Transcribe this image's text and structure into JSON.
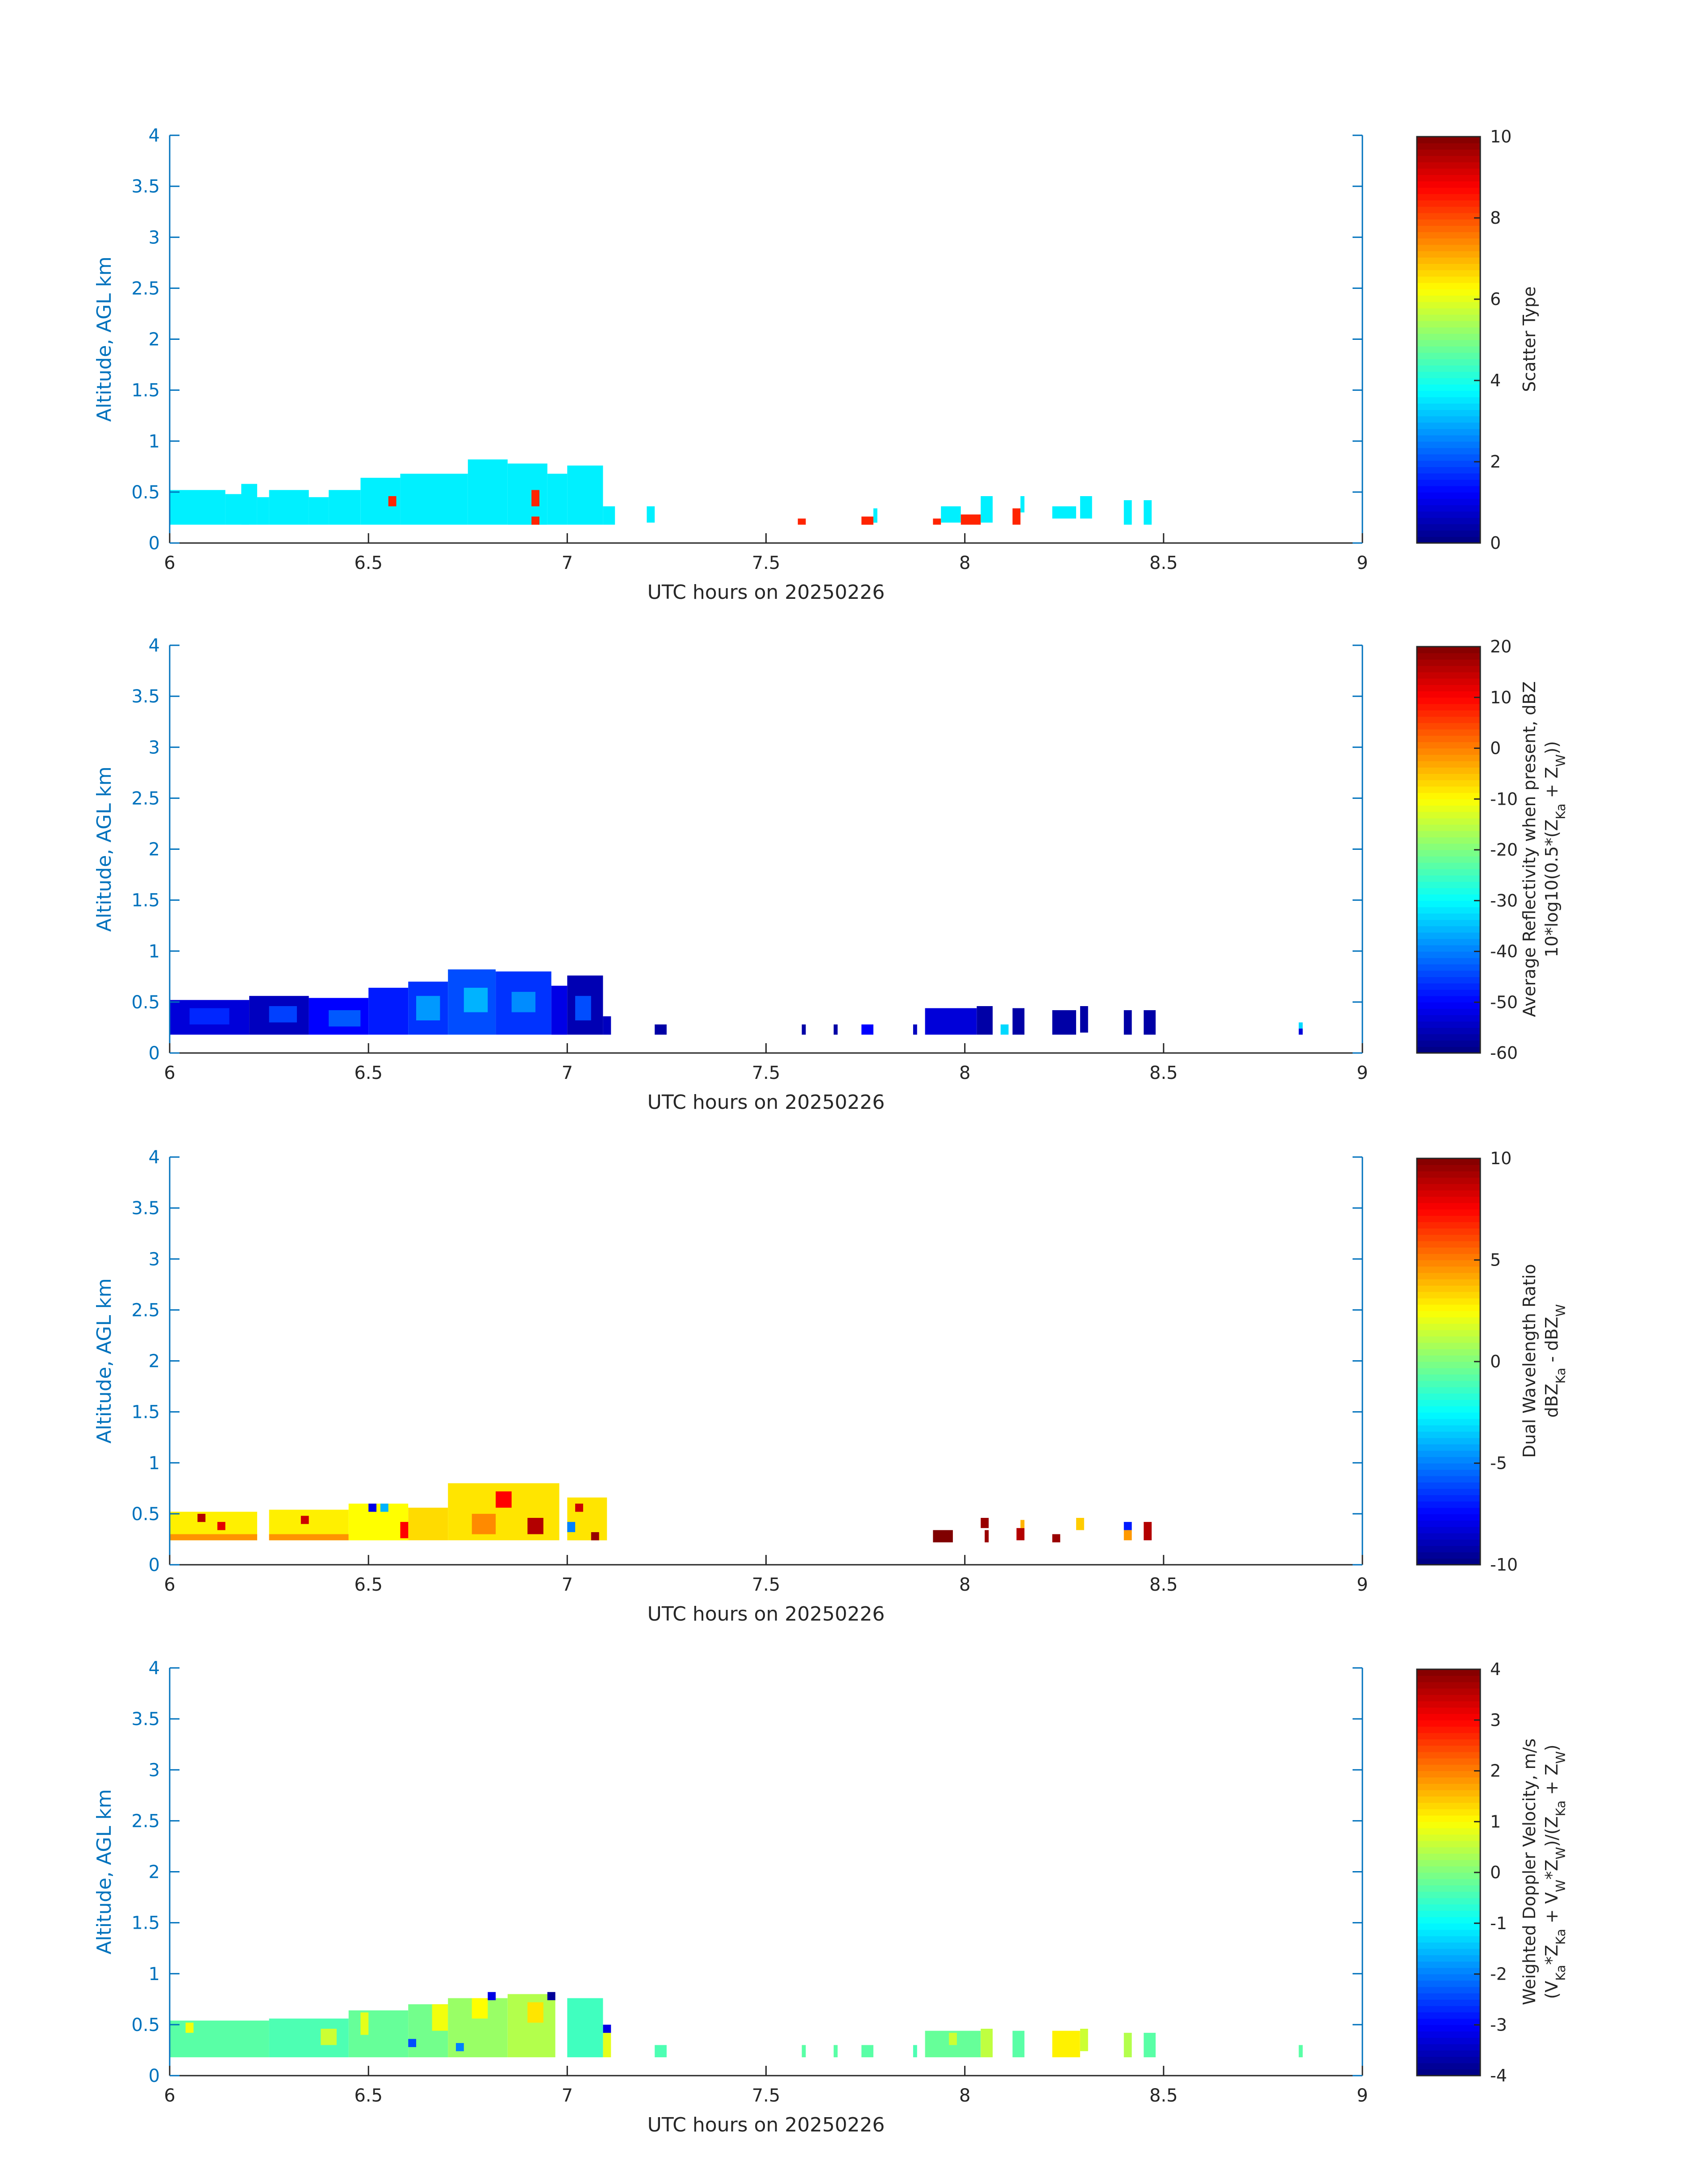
{
  "figure": {
    "date": "20250226"
  },
  "chart_data": [
    {
      "type": "heatmap",
      "id": "scatter-type",
      "xlabel": "UTC hours on 20250226",
      "ylabel": "Altitude, AGL km",
      "xlim": [
        6,
        9
      ],
      "ylim": [
        0,
        4
      ],
      "x_ticks": [
        "6",
        "6.5",
        "7",
        "7.5",
        "8",
        "8.5",
        "9"
      ],
      "y_ticks": [
        "0",
        "0.5",
        "1",
        "1.5",
        "2",
        "2.5",
        "3",
        "3.5",
        "4"
      ],
      "colorbar": {
        "label_lines": [
          "Scatter Type"
        ],
        "clim": [
          0,
          10
        ],
        "ticks": [
          "0",
          "2",
          "4",
          "6",
          "8",
          "10"
        ],
        "colormap": "jet"
      },
      "cells": [
        {
          "x0": 6.0,
          "x1": 6.14,
          "y0": 0.18,
          "y1": 0.52,
          "v": 3.6
        },
        {
          "x0": 6.14,
          "x1": 6.2,
          "y0": 0.18,
          "y1": 0.48,
          "v": 3.6
        },
        {
          "x0": 6.18,
          "x1": 6.22,
          "y0": 0.18,
          "y1": 0.58,
          "v": 3.6
        },
        {
          "x0": 6.22,
          "x1": 6.25,
          "y0": 0.18,
          "y1": 0.45,
          "v": 3.6
        },
        {
          "x0": 6.25,
          "x1": 6.35,
          "y0": 0.18,
          "y1": 0.52,
          "v": 3.6
        },
        {
          "x0": 6.35,
          "x1": 6.4,
          "y0": 0.18,
          "y1": 0.45,
          "v": 3.6
        },
        {
          "x0": 6.4,
          "x1": 6.48,
          "y0": 0.18,
          "y1": 0.52,
          "v": 3.6
        },
        {
          "x0": 6.48,
          "x1": 6.58,
          "y0": 0.18,
          "y1": 0.64,
          "v": 3.6
        },
        {
          "x0": 6.58,
          "x1": 6.75,
          "y0": 0.18,
          "y1": 0.68,
          "v": 3.6
        },
        {
          "x0": 6.75,
          "x1": 6.85,
          "y0": 0.18,
          "y1": 0.82,
          "v": 3.6
        },
        {
          "x0": 6.85,
          "x1": 6.95,
          "y0": 0.18,
          "y1": 0.78,
          "v": 3.6
        },
        {
          "x0": 6.95,
          "x1": 7.0,
          "y0": 0.18,
          "y1": 0.68,
          "v": 3.6
        },
        {
          "x0": 7.0,
          "x1": 7.09,
          "y0": 0.18,
          "y1": 0.76,
          "v": 3.6
        },
        {
          "x0": 7.09,
          "x1": 7.12,
          "y0": 0.18,
          "y1": 0.36,
          "v": 3.6
        },
        {
          "x0": 6.55,
          "x1": 6.57,
          "y0": 0.36,
          "y1": 0.46,
          "v": 8.4
        },
        {
          "x0": 6.91,
          "x1": 6.93,
          "y0": 0.36,
          "y1": 0.52,
          "v": 8.4
        },
        {
          "x0": 6.91,
          "x1": 6.93,
          "y0": 0.18,
          "y1": 0.26,
          "v": 8.4
        },
        {
          "x0": 7.2,
          "x1": 7.22,
          "y0": 0.2,
          "y1": 0.36,
          "v": 3.6
        },
        {
          "x0": 7.58,
          "x1": 7.6,
          "y0": 0.18,
          "y1": 0.24,
          "v": 8.4
        },
        {
          "x0": 7.74,
          "x1": 7.77,
          "y0": 0.18,
          "y1": 0.26,
          "v": 8.4
        },
        {
          "x0": 7.77,
          "x1": 7.78,
          "y0": 0.2,
          "y1": 0.34,
          "v": 3.6
        },
        {
          "x0": 7.92,
          "x1": 7.94,
          "y0": 0.18,
          "y1": 0.24,
          "v": 8.4
        },
        {
          "x0": 7.94,
          "x1": 7.99,
          "y0": 0.2,
          "y1": 0.36,
          "v": 3.6
        },
        {
          "x0": 7.99,
          "x1": 8.04,
          "y0": 0.18,
          "y1": 0.28,
          "v": 8.4
        },
        {
          "x0": 8.04,
          "x1": 8.07,
          "y0": 0.2,
          "y1": 0.46,
          "v": 3.6
        },
        {
          "x0": 8.12,
          "x1": 8.14,
          "y0": 0.18,
          "y1": 0.34,
          "v": 8.4
        },
        {
          "x0": 8.14,
          "x1": 8.15,
          "y0": 0.3,
          "y1": 0.46,
          "v": 3.6
        },
        {
          "x0": 8.22,
          "x1": 8.28,
          "y0": 0.24,
          "y1": 0.36,
          "v": 3.6
        },
        {
          "x0": 8.29,
          "x1": 8.32,
          "y0": 0.24,
          "y1": 0.46,
          "v": 3.6
        },
        {
          "x0": 8.4,
          "x1": 8.42,
          "y0": 0.18,
          "y1": 0.42,
          "v": 3.6
        },
        {
          "x0": 8.45,
          "x1": 8.47,
          "y0": 0.18,
          "y1": 0.42,
          "v": 3.6
        }
      ]
    },
    {
      "type": "heatmap",
      "id": "avg-reflectivity",
      "xlabel": "UTC hours on 20250226",
      "ylabel": "Altitude, AGL km",
      "xlim": [
        6,
        9
      ],
      "ylim": [
        0,
        4
      ],
      "x_ticks": [
        "6",
        "6.5",
        "7",
        "7.5",
        "8",
        "8.5",
        "9"
      ],
      "y_ticks": [
        "0",
        "0.5",
        "1",
        "1.5",
        "2",
        "2.5",
        "3",
        "3.5",
        "4"
      ],
      "colorbar": {
        "label_lines": [
          "Average Reflectivity when present, dBZ",
          "10*log10(0.5*(Z_Ka + Z_W))"
        ],
        "clim": [
          -60,
          20
        ],
        "ticks": [
          "-60",
          "-50",
          "-40",
          "-30",
          "-20",
          "-10",
          "0",
          "10",
          "20"
        ],
        "colormap": "jet"
      },
      "cells": [
        {
          "x0": 6.0,
          "x1": 6.2,
          "y0": 0.18,
          "y1": 0.52,
          "v": -53
        },
        {
          "x0": 6.05,
          "x1": 6.15,
          "y0": 0.28,
          "y1": 0.44,
          "v": -47
        },
        {
          "x0": 6.2,
          "x1": 6.35,
          "y0": 0.18,
          "y1": 0.56,
          "v": -55
        },
        {
          "x0": 6.25,
          "x1": 6.32,
          "y0": 0.3,
          "y1": 0.46,
          "v": -45
        },
        {
          "x0": 6.35,
          "x1": 6.5,
          "y0": 0.18,
          "y1": 0.54,
          "v": -50
        },
        {
          "x0": 6.4,
          "x1": 6.48,
          "y0": 0.26,
          "y1": 0.42,
          "v": -43
        },
        {
          "x0": 6.5,
          "x1": 6.6,
          "y0": 0.18,
          "y1": 0.64,
          "v": -48
        },
        {
          "x0": 6.6,
          "x1": 6.7,
          "y0": 0.18,
          "y1": 0.7,
          "v": -46
        },
        {
          "x0": 6.62,
          "x1": 6.68,
          "y0": 0.32,
          "y1": 0.56,
          "v": -38
        },
        {
          "x0": 6.7,
          "x1": 6.82,
          "y0": 0.18,
          "y1": 0.82,
          "v": -44
        },
        {
          "x0": 6.74,
          "x1": 6.8,
          "y0": 0.4,
          "y1": 0.64,
          "v": -36
        },
        {
          "x0": 6.82,
          "x1": 6.96,
          "y0": 0.18,
          "y1": 0.8,
          "v": -46
        },
        {
          "x0": 6.86,
          "x1": 6.92,
          "y0": 0.4,
          "y1": 0.6,
          "v": -39
        },
        {
          "x0": 6.96,
          "x1": 7.0,
          "y0": 0.18,
          "y1": 0.66,
          "v": -52
        },
        {
          "x0": 7.0,
          "x1": 7.09,
          "y0": 0.18,
          "y1": 0.76,
          "v": -56
        },
        {
          "x0": 7.02,
          "x1": 7.06,
          "y0": 0.32,
          "y1": 0.56,
          "v": -44
        },
        {
          "x0": 7.09,
          "x1": 7.11,
          "y0": 0.18,
          "y1": 0.36,
          "v": -55
        },
        {
          "x0": 7.22,
          "x1": 7.25,
          "y0": 0.18,
          "y1": 0.28,
          "v": -57
        },
        {
          "x0": 7.59,
          "x1": 7.6,
          "y0": 0.18,
          "y1": 0.28,
          "v": -57
        },
        {
          "x0": 7.67,
          "x1": 7.68,
          "y0": 0.18,
          "y1": 0.28,
          "v": -57
        },
        {
          "x0": 7.74,
          "x1": 7.77,
          "y0": 0.18,
          "y1": 0.28,
          "v": -50
        },
        {
          "x0": 7.87,
          "x1": 7.88,
          "y0": 0.18,
          "y1": 0.28,
          "v": -55
        },
        {
          "x0": 7.9,
          "x1": 8.03,
          "y0": 0.18,
          "y1": 0.44,
          "v": -53
        },
        {
          "x0": 8.03,
          "x1": 8.07,
          "y0": 0.18,
          "y1": 0.46,
          "v": -57
        },
        {
          "x0": 8.09,
          "x1": 8.11,
          "y0": 0.18,
          "y1": 0.28,
          "v": -33
        },
        {
          "x0": 8.12,
          "x1": 8.15,
          "y0": 0.18,
          "y1": 0.44,
          "v": -57
        },
        {
          "x0": 8.22,
          "x1": 8.28,
          "y0": 0.18,
          "y1": 0.42,
          "v": -57
        },
        {
          "x0": 8.29,
          "x1": 8.31,
          "y0": 0.2,
          "y1": 0.46,
          "v": -57
        },
        {
          "x0": 8.4,
          "x1": 8.42,
          "y0": 0.18,
          "y1": 0.42,
          "v": -57
        },
        {
          "x0": 8.45,
          "x1": 8.48,
          "y0": 0.18,
          "y1": 0.42,
          "v": -57
        },
        {
          "x0": 8.84,
          "x1": 8.85,
          "y0": 0.18,
          "y1": 0.24,
          "v": -53
        },
        {
          "x0": 8.84,
          "x1": 8.85,
          "y0": 0.24,
          "y1": 0.3,
          "v": -33
        }
      ]
    },
    {
      "type": "heatmap",
      "id": "dual-wavelength-ratio",
      "xlabel": "UTC hours on 20250226",
      "ylabel": "Altitude, AGL km",
      "xlim": [
        6,
        9
      ],
      "ylim": [
        0,
        4
      ],
      "x_ticks": [
        "6",
        "6.5",
        "7",
        "7.5",
        "8",
        "8.5",
        "9"
      ],
      "y_ticks": [
        "0",
        "0.5",
        "1",
        "1.5",
        "2",
        "2.5",
        "3",
        "3.5",
        "4"
      ],
      "colorbar": {
        "label_lines": [
          "Dual Wavelength Ratio",
          "dBZ_Ka - dBZ_W"
        ],
        "clim": [
          -10,
          10
        ],
        "ticks": [
          "-10",
          "-5",
          "0",
          "5",
          "10"
        ],
        "colormap": "jet"
      },
      "cells": [
        {
          "x0": 6.0,
          "x1": 6.22,
          "y0": 0.24,
          "y1": 0.52,
          "v": 2.8
        },
        {
          "x0": 6.0,
          "x1": 6.22,
          "y0": 0.24,
          "y1": 0.3,
          "v": 4.6
        },
        {
          "x0": 6.07,
          "x1": 6.09,
          "y0": 0.42,
          "y1": 0.5,
          "v": 9
        },
        {
          "x0": 6.12,
          "x1": 6.14,
          "y0": 0.34,
          "y1": 0.42,
          "v": 8
        },
        {
          "x0": 6.25,
          "x1": 6.45,
          "y0": 0.24,
          "y1": 0.54,
          "v": 2.8
        },
        {
          "x0": 6.25,
          "x1": 6.45,
          "y0": 0.24,
          "y1": 0.3,
          "v": 4.6
        },
        {
          "x0": 6.33,
          "x1": 6.35,
          "y0": 0.4,
          "y1": 0.48,
          "v": 8.5
        },
        {
          "x0": 6.45,
          "x1": 6.6,
          "y0": 0.24,
          "y1": 0.6,
          "v": 2.5
        },
        {
          "x0": 6.5,
          "x1": 6.52,
          "y0": 0.52,
          "y1": 0.6,
          "v": -8
        },
        {
          "x0": 6.53,
          "x1": 6.55,
          "y0": 0.52,
          "y1": 0.6,
          "v": -4
        },
        {
          "x0": 6.58,
          "x1": 6.64,
          "y0": 0.26,
          "y1": 0.42,
          "v": 7.5
        },
        {
          "x0": 6.6,
          "x1": 6.7,
          "y0": 0.24,
          "y1": 0.56,
          "v": 3.2
        },
        {
          "x0": 6.7,
          "x1": 6.98,
          "y0": 0.24,
          "y1": 0.8,
          "v": 3
        },
        {
          "x0": 6.76,
          "x1": 6.82,
          "y0": 0.3,
          "y1": 0.5,
          "v": 4.8
        },
        {
          "x0": 6.82,
          "x1": 6.86,
          "y0": 0.56,
          "y1": 0.72,
          "v": 7.5
        },
        {
          "x0": 6.9,
          "x1": 6.94,
          "y0": 0.3,
          "y1": 0.46,
          "v": 9
        },
        {
          "x0": 7.0,
          "x1": 7.1,
          "y0": 0.24,
          "y1": 0.66,
          "v": 3
        },
        {
          "x0": 7.02,
          "x1": 7.04,
          "y0": 0.52,
          "y1": 0.6,
          "v": 8.5
        },
        {
          "x0": 7.06,
          "x1": 7.08,
          "y0": 0.24,
          "y1": 0.32,
          "v": 9.5
        },
        {
          "x0": 7.0,
          "x1": 7.02,
          "y0": 0.32,
          "y1": 0.42,
          "v": -5
        },
        {
          "x0": 7.92,
          "x1": 7.97,
          "y0": 0.22,
          "y1": 0.34,
          "v": 10
        },
        {
          "x0": 8.04,
          "x1": 8.06,
          "y0": 0.36,
          "y1": 0.46,
          "v": 9.5
        },
        {
          "x0": 8.05,
          "x1": 8.06,
          "y0": 0.22,
          "y1": 0.34,
          "v": 9.5
        },
        {
          "x0": 8.13,
          "x1": 8.15,
          "y0": 0.24,
          "y1": 0.36,
          "v": 9
        },
        {
          "x0": 8.14,
          "x1": 8.15,
          "y0": 0.36,
          "y1": 0.44,
          "v": 4
        },
        {
          "x0": 8.22,
          "x1": 8.24,
          "y0": 0.22,
          "y1": 0.3,
          "v": 9.5
        },
        {
          "x0": 8.28,
          "x1": 8.3,
          "y0": 0.34,
          "y1": 0.46,
          "v": 3.5
        },
        {
          "x0": 8.4,
          "x1": 8.42,
          "y0": 0.24,
          "y1": 0.34,
          "v": 4.5
        },
        {
          "x0": 8.4,
          "x1": 8.42,
          "y0": 0.34,
          "y1": 0.42,
          "v": -7
        },
        {
          "x0": 8.45,
          "x1": 8.47,
          "y0": 0.24,
          "y1": 0.42,
          "v": 9
        }
      ]
    },
    {
      "type": "heatmap",
      "id": "weighted-doppler-velocity",
      "xlabel": "UTC hours on 20250226",
      "ylabel": "Altitude, AGL km",
      "xlim": [
        6,
        9
      ],
      "ylim": [
        0,
        4
      ],
      "x_ticks": [
        "6",
        "6.5",
        "7",
        "7.5",
        "8",
        "8.5",
        "9"
      ],
      "y_ticks": [
        "0",
        "0.5",
        "1",
        "1.5",
        "2",
        "2.5",
        "3",
        "3.5",
        "4"
      ],
      "colorbar": {
        "label_lines": [
          "Weighted Doppler Velocity, m/s",
          "(V_Ka*Z_Ka + V_W*Z_W)/(Z_Ka + Z_W)"
        ],
        "clim": [
          -4,
          4
        ],
        "ticks": [
          "-4",
          "-3",
          "-2",
          "-1",
          "0",
          "1",
          "2",
          "3",
          "4"
        ],
        "colormap": "jet"
      },
      "cells": [
        {
          "x0": 6.0,
          "x1": 6.25,
          "y0": 0.18,
          "y1": 0.54,
          "v": -0.3
        },
        {
          "x0": 6.04,
          "x1": 6.06,
          "y0": 0.42,
          "y1": 0.52,
          "v": 0.9
        },
        {
          "x0": 6.25,
          "x1": 6.45,
          "y0": 0.18,
          "y1": 0.56,
          "v": -0.4
        },
        {
          "x0": 6.38,
          "x1": 6.42,
          "y0": 0.3,
          "y1": 0.46,
          "v": 0.6
        },
        {
          "x0": 6.45,
          "x1": 6.6,
          "y0": 0.18,
          "y1": 0.64,
          "v": -0.2
        },
        {
          "x0": 6.48,
          "x1": 6.5,
          "y0": 0.4,
          "y1": 0.62,
          "v": 0.8
        },
        {
          "x0": 6.6,
          "x1": 6.7,
          "y0": 0.18,
          "y1": 0.7,
          "v": -0.1
        },
        {
          "x0": 6.66,
          "x1": 6.7,
          "y0": 0.44,
          "y1": 0.7,
          "v": 0.9
        },
        {
          "x0": 6.7,
          "x1": 6.85,
          "y0": 0.18,
          "y1": 0.76,
          "v": 0.2
        },
        {
          "x0": 6.76,
          "x1": 6.8,
          "y0": 0.56,
          "y1": 0.76,
          "v": 1
        },
        {
          "x0": 6.8,
          "x1": 6.82,
          "y0": 0.74,
          "y1": 0.82,
          "v": -3.2
        },
        {
          "x0": 6.85,
          "x1": 6.97,
          "y0": 0.18,
          "y1": 0.8,
          "v": 0.4
        },
        {
          "x0": 6.9,
          "x1": 6.94,
          "y0": 0.52,
          "y1": 0.72,
          "v": 1.2
        },
        {
          "x0": 6.95,
          "x1": 6.97,
          "y0": 0.74,
          "y1": 0.82,
          "v": -3.8
        },
        {
          "x0": 6.72,
          "x1": 6.74,
          "y0": 0.24,
          "y1": 0.32,
          "v": -2
        },
        {
          "x0": 6.6,
          "x1": 6.62,
          "y0": 0.28,
          "y1": 0.36,
          "v": -2.4
        },
        {
          "x0": 7.0,
          "x1": 7.09,
          "y0": 0.18,
          "y1": 0.76,
          "v": -0.5
        },
        {
          "x0": 7.09,
          "x1": 7.11,
          "y0": 0.18,
          "y1": 0.42,
          "v": 0.8
        },
        {
          "x0": 7.09,
          "x1": 7.11,
          "y0": 0.42,
          "y1": 0.5,
          "v": -3.2
        },
        {
          "x0": 7.22,
          "x1": 7.25,
          "y0": 0.18,
          "y1": 0.3,
          "v": -0.4
        },
        {
          "x0": 7.59,
          "x1": 7.6,
          "y0": 0.18,
          "y1": 0.3,
          "v": -0.3
        },
        {
          "x0": 7.67,
          "x1": 7.68,
          "y0": 0.18,
          "y1": 0.3,
          "v": -0.3
        },
        {
          "x0": 7.74,
          "x1": 7.77,
          "y0": 0.18,
          "y1": 0.3,
          "v": -0.3
        },
        {
          "x0": 7.87,
          "x1": 7.88,
          "y0": 0.18,
          "y1": 0.3,
          "v": -0.4
        },
        {
          "x0": 7.9,
          "x1": 8.04,
          "y0": 0.18,
          "y1": 0.44,
          "v": -0.2
        },
        {
          "x0": 7.96,
          "x1": 7.98,
          "y0": 0.3,
          "y1": 0.42,
          "v": 0.6
        },
        {
          "x0": 8.04,
          "x1": 8.07,
          "y0": 0.18,
          "y1": 0.46,
          "v": 0.5
        },
        {
          "x0": 8.12,
          "x1": 8.15,
          "y0": 0.18,
          "y1": 0.44,
          "v": -0.3
        },
        {
          "x0": 8.22,
          "x1": 8.29,
          "y0": 0.18,
          "y1": 0.44,
          "v": 1.1
        },
        {
          "x0": 8.29,
          "x1": 8.31,
          "y0": 0.24,
          "y1": 0.46,
          "v": 0.6
        },
        {
          "x0": 8.4,
          "x1": 8.42,
          "y0": 0.18,
          "y1": 0.42,
          "v": 0.4
        },
        {
          "x0": 8.45,
          "x1": 8.48,
          "y0": 0.18,
          "y1": 0.42,
          "v": -0.3
        },
        {
          "x0": 8.84,
          "x1": 8.85,
          "y0": 0.18,
          "y1": 0.3,
          "v": -0.3
        }
      ]
    }
  ]
}
